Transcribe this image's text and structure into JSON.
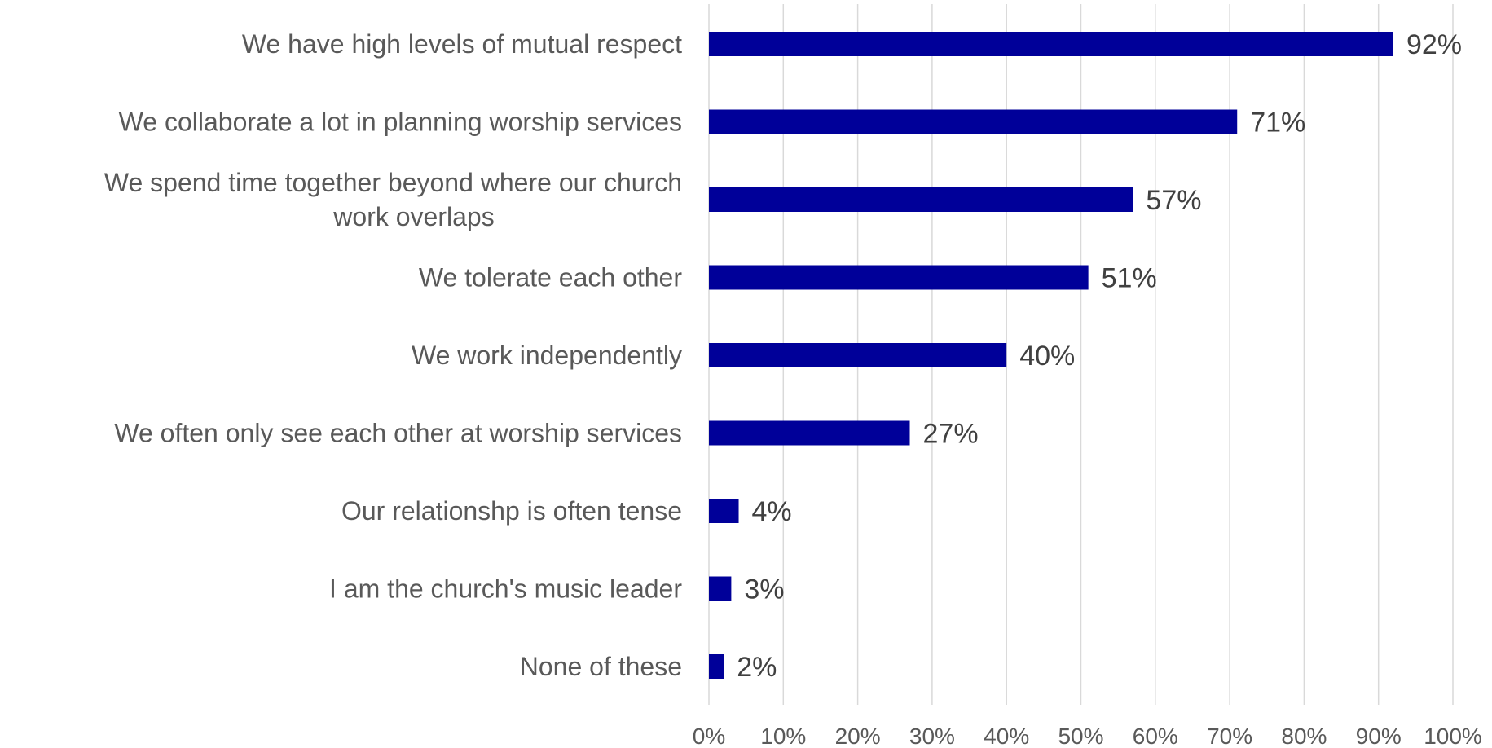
{
  "chart_data": {
    "type": "bar",
    "orientation": "horizontal",
    "categories": [
      "We have high levels of mutual respect",
      [
        "We collaborate a lot in planning worship services"
      ],
      [
        "We spend time together beyond where our church",
        "work overlaps"
      ],
      "We tolerate each other",
      "We work independently",
      "We often only see each other at worship services",
      "Our relationshp is often tense",
      "I am the church's music leader",
      "None of these"
    ],
    "values": [
      92,
      71,
      57,
      51,
      40,
      27,
      4,
      3,
      2
    ],
    "data_labels": [
      "92%",
      "71%",
      "57%",
      "51%",
      "40%",
      "27%",
      "4%",
      "3%",
      "2%"
    ],
    "xlim": [
      0,
      100
    ],
    "x_ticks": [
      0,
      10,
      20,
      30,
      40,
      50,
      60,
      70,
      80,
      90,
      100
    ],
    "x_tick_labels": [
      "0%",
      "10%",
      "20%",
      "30%",
      "40%",
      "50%",
      "60%",
      "70%",
      "80%",
      "90%",
      "100%"
    ],
    "grid": true,
    "legend": "none",
    "bar_color": "#000099"
  }
}
